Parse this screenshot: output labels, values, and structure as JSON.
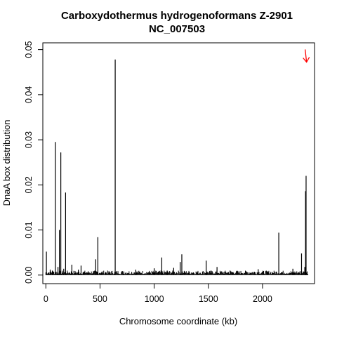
{
  "chart_data": {
    "type": "bar",
    "title_line1": "Carboxydothermus hydrogenoformans Z-2901",
    "title_line2": "NC_007503",
    "xlabel": "Chromosome coordinate (kb)",
    "ylabel": "DnaA box distribution",
    "xlim": [
      -28,
      2480
    ],
    "ylim": [
      -0.0019,
      0.0515
    ],
    "x_ticks": [
      0,
      500,
      1000,
      1500,
      2000
    ],
    "x_tick_labels": [
      "0",
      "500",
      "1000",
      "1500",
      "2000"
    ],
    "y_ticks": [
      0,
      0.01,
      0.02,
      0.03,
      0.04,
      0.05
    ],
    "y_tick_labels": [
      "0.00",
      "0.01",
      "0.02",
      "0.03",
      "0.04",
      "0.05"
    ],
    "grid": false,
    "legend": "none",
    "bar_color": "#000000",
    "marker": {
      "x": 2400,
      "y": 0.048,
      "color": "#ff0000",
      "shape": "down-arrow"
    },
    "peaks": [
      {
        "x": 5,
        "y": 0.0052
      },
      {
        "x": 40,
        "y": 0.0012
      },
      {
        "x": 60,
        "y": 0.001
      },
      {
        "x": 88,
        "y": 0.0295
      },
      {
        "x": 112,
        "y": 0.0018
      },
      {
        "x": 125,
        "y": 0.01
      },
      {
        "x": 138,
        "y": 0.0272
      },
      {
        "x": 165,
        "y": 0.0014
      },
      {
        "x": 182,
        "y": 0.0183
      },
      {
        "x": 240,
        "y": 0.0023
      },
      {
        "x": 300,
        "y": 0.0012
      },
      {
        "x": 325,
        "y": 0.0021
      },
      {
        "x": 460,
        "y": 0.0035
      },
      {
        "x": 480,
        "y": 0.0084
      },
      {
        "x": 640,
        "y": 0.0478
      },
      {
        "x": 720,
        "y": 0.0008
      },
      {
        "x": 830,
        "y": 0.0012
      },
      {
        "x": 1000,
        "y": 0.0015
      },
      {
        "x": 1070,
        "y": 0.0039
      },
      {
        "x": 1120,
        "y": 0.001
      },
      {
        "x": 1180,
        "y": 0.0016
      },
      {
        "x": 1240,
        "y": 0.0029
      },
      {
        "x": 1255,
        "y": 0.0046
      },
      {
        "x": 1480,
        "y": 0.0032
      },
      {
        "x": 1580,
        "y": 0.0018
      },
      {
        "x": 1700,
        "y": 0.001
      },
      {
        "x": 1960,
        "y": 0.0013
      },
      {
        "x": 2150,
        "y": 0.0094
      },
      {
        "x": 2280,
        "y": 0.0014
      },
      {
        "x": 2360,
        "y": 0.0048
      },
      {
        "x": 2390,
        "y": 0.0018
      },
      {
        "x": 2397,
        "y": 0.0186
      },
      {
        "x": 2402,
        "y": 0.022
      }
    ]
  }
}
